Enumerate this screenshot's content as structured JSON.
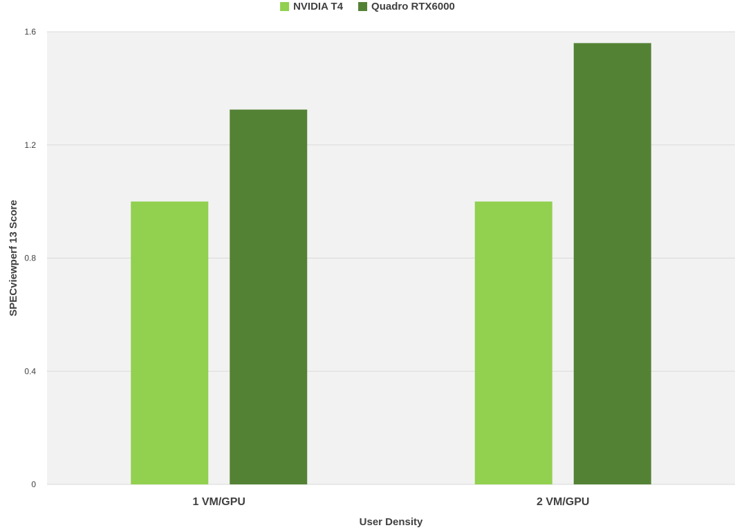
{
  "chart_data": {
    "type": "bar",
    "categories": [
      "1 VM/GPU",
      "2 VM/GPU"
    ],
    "series": [
      {
        "name": "NVIDIA T4",
        "values": [
          1.0,
          1.0
        ],
        "color": "#92D050"
      },
      {
        "name": "Quadro RTX6000",
        "values": [
          1.325,
          1.56
        ],
        "color": "#548235"
      }
    ],
    "title": "",
    "xlabel": "User Density",
    "ylabel": "SPECviewperf 13 Score",
    "ylim": [
      0,
      1.6
    ],
    "yticks": [
      0,
      0.4,
      0.8,
      1.2,
      1.6
    ],
    "ytick_labels": [
      "0",
      "0.4",
      "0.8",
      "1.2",
      "1.6"
    ],
    "grid": true,
    "legend_position": "top-center",
    "plot_background": "#F2F2F2",
    "gridline_color": "#D9D9D9"
  }
}
